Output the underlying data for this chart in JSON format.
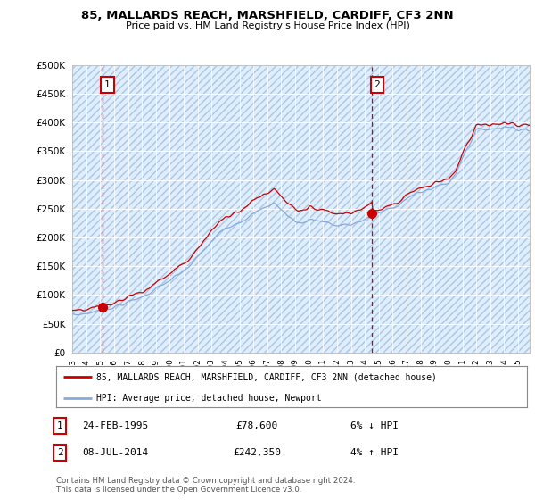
{
  "title_line1": "85, MALLARDS REACH, MARSHFIELD, CARDIFF, CF3 2NN",
  "title_line2": "Price paid vs. HM Land Registry's House Price Index (HPI)",
  "ylabel_ticks": [
    "£0",
    "£50K",
    "£100K",
    "£150K",
    "£200K",
    "£250K",
    "£300K",
    "£350K",
    "£400K",
    "£450K",
    "£500K"
  ],
  "ytick_values": [
    0,
    50000,
    100000,
    150000,
    200000,
    250000,
    300000,
    350000,
    400000,
    450000,
    500000
  ],
  "xlim_start": 1993.0,
  "xlim_end": 2025.83,
  "ylim": [
    0,
    500000
  ],
  "background_color": "#ffffff",
  "plot_bg_color": "#ddeeff",
  "sale1_x": 1995.15,
  "sale1_y": 78600,
  "sale1_label": "1",
  "sale2_x": 2014.52,
  "sale2_y": 242350,
  "sale2_label": "2",
  "dashed_line1_x": 1995.15,
  "dashed_line2_x": 2014.52,
  "legend_line1": "85, MALLARDS REACH, MARSHFIELD, CARDIFF, CF3 2NN (detached house)",
  "legend_line2": "HPI: Average price, detached house, Newport",
  "table_row1": [
    "1",
    "24-FEB-1995",
    "£78,600",
    "6% ↓ HPI"
  ],
  "table_row2": [
    "2",
    "08-JUL-2014",
    "£242,350",
    "4% ↑ HPI"
  ],
  "footer": "Contains HM Land Registry data © Crown copyright and database right 2024.\nThis data is licensed under the Open Government Licence v3.0.",
  "price_line_color": "#cc0000",
  "hpi_line_color": "#88aadd",
  "marker_color": "#cc0000",
  "dashed_color": "#cc0000"
}
